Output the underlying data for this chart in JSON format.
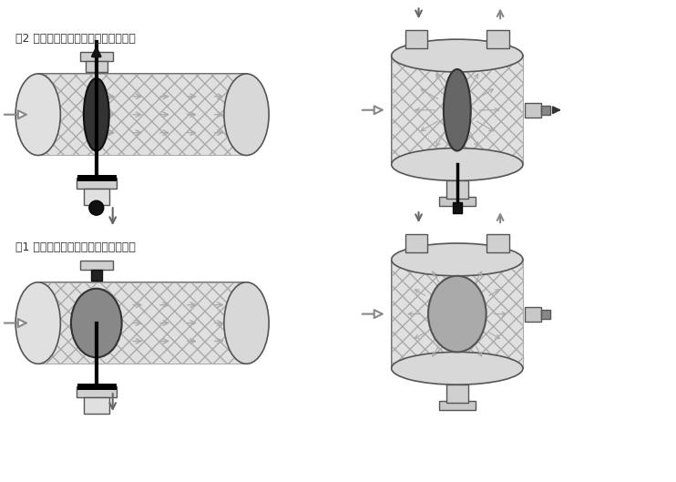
{
  "bg_color": "#f5f5f5",
  "line_color": "#555555",
  "fill_light": "#d8d8d8",
  "fill_medium": "#b0b0b0",
  "fill_dark": "#333333",
  "fill_hatch": "#cccccc",
  "arrow_color": "#dddddd",
  "caption1": "图1 正常过滤状态（水流导向阀开启）",
  "caption2": "图2 反洗排污状态（水流导向阀关闭）",
  "caption_fontsize": 9,
  "white": "#ffffff",
  "black": "#000000",
  "gray_tank": "#c8c8c8",
  "gray_disk": "#a0a0a0"
}
